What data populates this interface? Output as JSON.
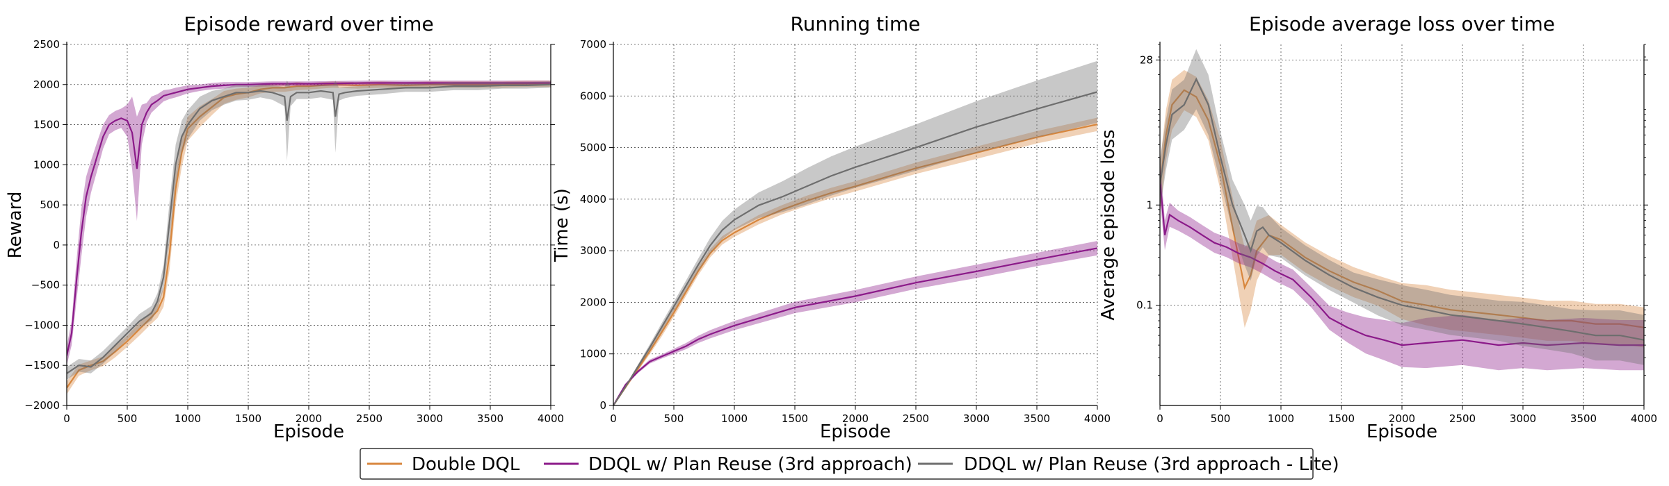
{
  "legend": {
    "placement": "bottom-center",
    "entries": [
      {
        "name": "Double DQL",
        "color": "#d8873e"
      },
      {
        "name": "DDQL w/ Plan Reuse (3rd approach)",
        "color": "#8b1a89"
      },
      {
        "name": "DDQL w/ Plan Reuse (3rd approach - Lite)",
        "color": "#6e6e6e"
      }
    ]
  },
  "chart_data": [
    {
      "type": "line",
      "title": "Episode reward over time",
      "xlabel": "Episode",
      "ylabel": "Reward",
      "xlim": [
        0,
        4000
      ],
      "ylim": [
        -2000,
        2500
      ],
      "xticks": [
        0,
        500,
        1000,
        1500,
        2000,
        2500,
        3000,
        3500,
        4000
      ],
      "xtick_labels": [
        "0",
        "500",
        "1000",
        "1500",
        "2000",
        "2500",
        "3000",
        "3500",
        "4000"
      ],
      "yticks": [
        -2000,
        -1500,
        -1000,
        -500,
        0,
        500,
        1000,
        1500,
        2000,
        2500
      ],
      "ytick_labels": [
        "−2000",
        "−1500",
        "−1000",
        "−500",
        "0",
        "500",
        "1000",
        "1500",
        "2000",
        "2500"
      ],
      "yscale": "linear",
      "grid": true,
      "series": [
        {
          "name": "Double DQL",
          "color": "#d8873e",
          "x": [
            0,
            100,
            200,
            300,
            400,
            500,
            600,
            700,
            750,
            800,
            850,
            900,
            950,
            1000,
            1100,
            1200,
            1300,
            1400,
            1500,
            1600,
            1700,
            1800,
            1900,
            2000,
            2200,
            2400,
            2600,
            2800,
            3000,
            3200,
            3400,
            3600,
            3800,
            4000
          ],
          "y": [
            -1780,
            -1560,
            -1500,
            -1450,
            -1330,
            -1200,
            -1050,
            -900,
            -820,
            -650,
            -100,
            700,
            1150,
            1450,
            1600,
            1720,
            1840,
            1880,
            1900,
            1940,
            1960,
            1960,
            1980,
            1980,
            2000,
            1990,
            2000,
            1990,
            2000,
            2000,
            2000,
            2000,
            2010,
            2010
          ],
          "spread": [
            80,
            70,
            60,
            60,
            70,
            70,
            80,
            80,
            90,
            120,
            200,
            200,
            180,
            150,
            130,
            100,
            80,
            70,
            60,
            50,
            50,
            50,
            50,
            40,
            40,
            40,
            40,
            40,
            40,
            40,
            40,
            40,
            40,
            40
          ]
        },
        {
          "name": "DDQL w/ Plan Reuse (3rd approach)",
          "color": "#8b1a89",
          "x": [
            0,
            40,
            80,
            120,
            160,
            200,
            250,
            300,
            350,
            400,
            450,
            500,
            540,
            580,
            620,
            660,
            700,
            750,
            800,
            850,
            900,
            1000,
            1100,
            1200,
            1300,
            1400,
            1500,
            1700,
            2000,
            2500,
            3000,
            3500,
            4000
          ],
          "y": [
            -1380,
            -1100,
            -450,
            150,
            600,
            850,
            1100,
            1350,
            1500,
            1550,
            1580,
            1550,
            1400,
            950,
            1500,
            1650,
            1750,
            1800,
            1860,
            1880,
            1900,
            1940,
            1960,
            1980,
            1990,
            2000,
            2000,
            2010,
            2010,
            2020,
            2020,
            2020,
            2020
          ],
          "spread": [
            120,
            150,
            250,
            300,
            250,
            200,
            180,
            150,
            120,
            120,
            120,
            200,
            450,
            650,
            250,
            120,
            100,
            80,
            70,
            60,
            60,
            50,
            40,
            40,
            40,
            30,
            30,
            30,
            30,
            30,
            30,
            30,
            30
          ]
        },
        {
          "name": "DDQL w/ Plan Reuse (3rd approach - Lite)",
          "color": "#6e6e6e",
          "x": [
            0,
            100,
            200,
            300,
            400,
            500,
            600,
            700,
            750,
            800,
            850,
            900,
            950,
            1000,
            1100,
            1200,
            1300,
            1400,
            1500,
            1600,
            1700,
            1800,
            1820,
            1850,
            1900,
            2000,
            2100,
            2200,
            2220,
            2250,
            2300,
            2400,
            2600,
            2800,
            3000,
            3200,
            3400,
            3600,
            3800,
            4000
          ],
          "y": [
            -1600,
            -1500,
            -1520,
            -1400,
            -1250,
            -1100,
            -950,
            -850,
            -700,
            -400,
            300,
            1000,
            1350,
            1500,
            1700,
            1800,
            1850,
            1900,
            1900,
            1920,
            1900,
            1850,
            1550,
            1850,
            1900,
            1900,
            1920,
            1900,
            1600,
            1880,
            1900,
            1920,
            1940,
            1960,
            1960,
            1980,
            1980,
            1990,
            1990,
            2000
          ],
          "spread": [
            80,
            80,
            80,
            80,
            80,
            80,
            90,
            90,
            100,
            150,
            250,
            250,
            200,
            180,
            150,
            120,
            100,
            100,
            90,
            80,
            90,
            120,
            500,
            120,
            80,
            80,
            80,
            90,
            450,
            80,
            70,
            60,
            60,
            50,
            50,
            50,
            50,
            40,
            40,
            40
          ]
        }
      ]
    },
    {
      "type": "line",
      "title": "Running time",
      "xlabel": "Episode",
      "ylabel": "Time (s)",
      "xlim": [
        0,
        4000
      ],
      "ylim": [
        0,
        7000
      ],
      "xticks": [
        0,
        500,
        1000,
        1500,
        2000,
        2500,
        3000,
        3500,
        4000
      ],
      "xtick_labels": [
        "0",
        "500",
        "1000",
        "1500",
        "2000",
        "2500",
        "3000",
        "3500",
        "4000"
      ],
      "yticks": [
        0,
        1000,
        2000,
        3000,
        4000,
        5000,
        6000,
        7000
      ],
      "ytick_labels": [
        "0",
        "1000",
        "2000",
        "3000",
        "4000",
        "5000",
        "6000",
        "7000"
      ],
      "yscale": "linear",
      "grid": true,
      "series": [
        {
          "name": "Double DQL",
          "color": "#d8873e",
          "x": [
            0,
            100,
            200,
            300,
            400,
            500,
            600,
            700,
            800,
            900,
            1000,
            1200,
            1400,
            1600,
            1800,
            2000,
            2500,
            3000,
            3500,
            4000
          ],
          "y": [
            0,
            350,
            700,
            1050,
            1420,
            1800,
            2200,
            2600,
            2950,
            3200,
            3350,
            3600,
            3800,
            3970,
            4120,
            4250,
            4600,
            4900,
            5200,
            5450
          ],
          "spread": [
            0,
            20,
            40,
            60,
            80,
            80,
            80,
            80,
            80,
            80,
            80,
            90,
            90,
            100,
            100,
            100,
            110,
            120,
            120,
            130
          ]
        },
        {
          "name": "DDQL w/ Plan Reuse (3rd approach)",
          "color": "#8b1a89",
          "x": [
            0,
            50,
            100,
            200,
            300,
            400,
            500,
            600,
            700,
            800,
            1000,
            1500,
            2000,
            2500,
            3000,
            3500,
            4000
          ],
          "y": [
            0,
            200,
            400,
            650,
            850,
            950,
            1050,
            1150,
            1280,
            1380,
            1550,
            1900,
            2120,
            2380,
            2600,
            2830,
            3050
          ],
          "spread": [
            0,
            10,
            20,
            30,
            40,
            40,
            50,
            60,
            70,
            80,
            90,
            110,
            120,
            120,
            130,
            130,
            140
          ]
        },
        {
          "name": "DDQL w/ Plan Reuse (3rd approach - Lite)",
          "color": "#6e6e6e",
          "x": [
            0,
            100,
            200,
            300,
            400,
            500,
            600,
            700,
            800,
            900,
            1000,
            1200,
            1400,
            1600,
            1800,
            2000,
            2500,
            3000,
            3500,
            4000
          ],
          "y": [
            0,
            360,
            740,
            1120,
            1520,
            1920,
            2320,
            2720,
            3100,
            3400,
            3600,
            3880,
            4050,
            4250,
            4450,
            4620,
            5000,
            5400,
            5750,
            6080
          ],
          "spread": [
            0,
            20,
            40,
            60,
            80,
            90,
            100,
            120,
            150,
            180,
            200,
            250,
            300,
            350,
            380,
            400,
            450,
            500,
            550,
            600
          ]
        }
      ]
    },
    {
      "type": "line",
      "title": "Episode average loss over time",
      "xlabel": "Episode",
      "ylabel": "Average episode loss",
      "xlim": [
        0,
        4000
      ],
      "ylim": [
        0.01,
        40
      ],
      "xticks": [
        0,
        500,
        1000,
        1500,
        2000,
        2500,
        3000,
        3500,
        4000
      ],
      "xtick_labels": [
        "0",
        "500",
        "1000",
        "1500",
        "2000",
        "2500",
        "3000",
        "3500",
        "4000"
      ],
      "yticks": [
        0.1,
        1,
        28
      ],
      "ytick_labels": [
        "0.1",
        "1",
        "28"
      ],
      "yscale": "log",
      "grid": true,
      "series": [
        {
          "name": "Double DQL",
          "color": "#d8873e",
          "x": [
            0,
            50,
            100,
            200,
            300,
            400,
            500,
            600,
            650,
            700,
            750,
            800,
            900,
            1000,
            1200,
            1400,
            1600,
            1800,
            2000,
            2200,
            2400,
            2600,
            2800,
            3000,
            3200,
            3400,
            3600,
            3800,
            4000
          ],
          "y": [
            1.5,
            5,
            10,
            14,
            12,
            7,
            2.5,
            0.6,
            0.3,
            0.15,
            0.2,
            0.35,
            0.5,
            0.45,
            0.3,
            0.22,
            0.17,
            0.14,
            0.11,
            0.1,
            0.09,
            0.085,
            0.08,
            0.075,
            0.07,
            0.07,
            0.065,
            0.065,
            0.06
          ],
          "spread": [
            0.25,
            0.25,
            0.25,
            0.2,
            0.2,
            0.2,
            0.25,
            0.3,
            0.35,
            0.4,
            0.35,
            0.3,
            0.2,
            0.15,
            0.15,
            0.15,
            0.15,
            0.15,
            0.18,
            0.2,
            0.2,
            0.2,
            0.2,
            0.2,
            0.2,
            0.2,
            0.2,
            0.2,
            0.2
          ]
        },
        {
          "name": "DDQL w/ Plan Reuse (3rd approach)",
          "color": "#8b1a89",
          "x": [
            0,
            40,
            80,
            150,
            250,
            350,
            450,
            550,
            650,
            750,
            850,
            950,
            1100,
            1250,
            1400,
            1550,
            1700,
            1850,
            2000,
            2200,
            2500,
            2800,
            3000,
            3200,
            3500,
            3800,
            4000
          ],
          "y": [
            1.8,
            0.5,
            0.8,
            0.7,
            0.6,
            0.5,
            0.42,
            0.38,
            0.33,
            0.3,
            0.26,
            0.22,
            0.18,
            0.12,
            0.075,
            0.06,
            0.05,
            0.045,
            0.04,
            0.042,
            0.045,
            0.04,
            0.042,
            0.04,
            0.042,
            0.04,
            0.04
          ],
          "spread": [
            0.2,
            0.15,
            0.12,
            0.1,
            0.1,
            0.1,
            0.1,
            0.1,
            0.1,
            0.1,
            0.1,
            0.1,
            0.1,
            0.1,
            0.12,
            0.15,
            0.18,
            0.2,
            0.22,
            0.25,
            0.25,
            0.25,
            0.25,
            0.25,
            0.25,
            0.25,
            0.25
          ]
        },
        {
          "name": "DDQL w/ Plan Reuse (3rd approach - Lite)",
          "color": "#6e6e6e",
          "x": [
            0,
            50,
            100,
            200,
            300,
            400,
            500,
            600,
            700,
            750,
            800,
            850,
            900,
            1000,
            1200,
            1400,
            1600,
            1800,
            2000,
            2200,
            2400,
            2600,
            2800,
            3000,
            3200,
            3400,
            3600,
            3800,
            4000
          ],
          "y": [
            1.6,
            4,
            8,
            10,
            18,
            10,
            3,
            1.0,
            0.5,
            0.35,
            0.55,
            0.6,
            0.5,
            0.42,
            0.28,
            0.2,
            0.15,
            0.12,
            0.1,
            0.09,
            0.08,
            0.075,
            0.07,
            0.065,
            0.06,
            0.055,
            0.05,
            0.05,
            0.045
          ],
          "spread": [
            0.25,
            0.25,
            0.25,
            0.25,
            0.3,
            0.3,
            0.25,
            0.25,
            0.3,
            0.3,
            0.25,
            0.2,
            0.2,
            0.15,
            0.15,
            0.15,
            0.15,
            0.18,
            0.2,
            0.2,
            0.2,
            0.2,
            0.2,
            0.22,
            0.22,
            0.22,
            0.25,
            0.25,
            0.25
          ]
        }
      ]
    }
  ]
}
